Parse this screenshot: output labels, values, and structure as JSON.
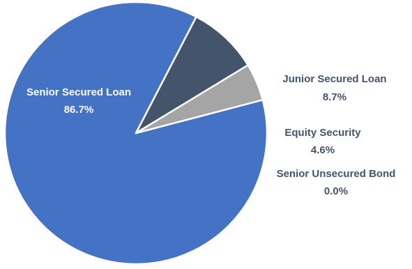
{
  "chart_data": {
    "type": "pie",
    "title": "",
    "legend": "none",
    "slices": [
      {
        "label": "Senior Secured Loan",
        "value": 86.7,
        "value_label": "86.7%",
        "color": "#4472C4"
      },
      {
        "label": "Junior Secured Loan",
        "value": 8.7,
        "value_label": "8.7%",
        "color": "#44546A"
      },
      {
        "label": "Equity Security",
        "value": 4.6,
        "value_label": "4.6%",
        "color": "#A5A5A5"
      },
      {
        "label": "Senior Unsecured Bond",
        "value": 0.0,
        "value_label": "0.0%",
        "color": "#5B9BD5"
      }
    ],
    "label_colors": {
      "inside": "#FFFFFF",
      "outside": "#44546A"
    }
  }
}
